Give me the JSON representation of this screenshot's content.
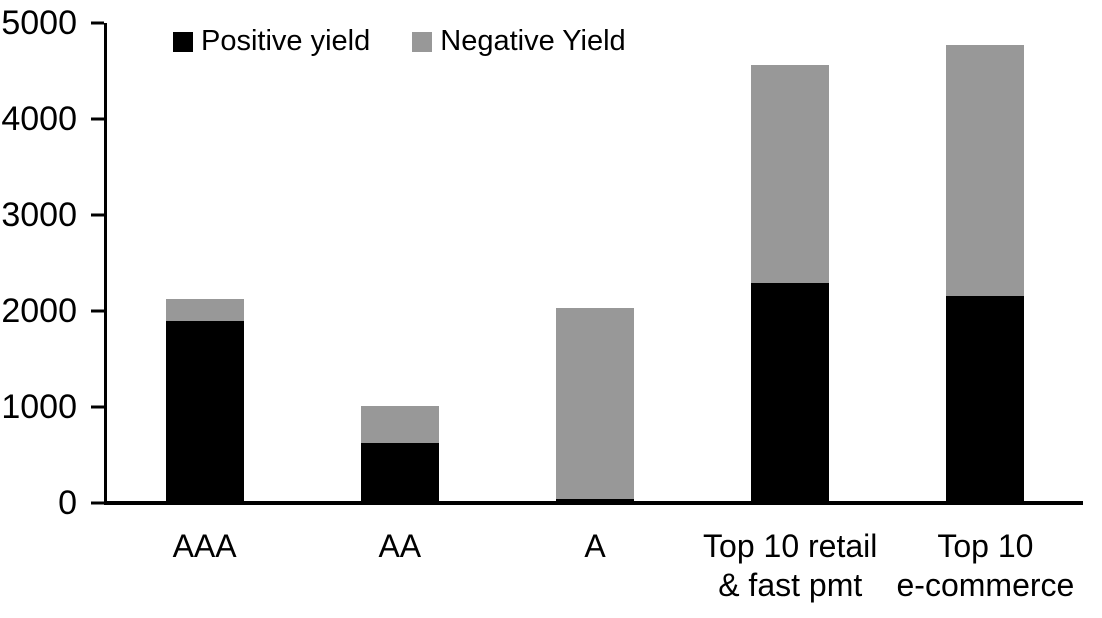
{
  "chart_data": {
    "type": "bar",
    "stacked": true,
    "title": "",
    "categories": [
      "AAA",
      "AA",
      "A",
      "Top 10 retail\n& fast pmt",
      "Top 10\ne-commerce"
    ],
    "series": [
      {
        "name": "Positive yield",
        "color": "#000000",
        "values": [
          1900,
          630,
          45,
          2290,
          2160
        ]
      },
      {
        "name": "Negative Yield",
        "color": "#989898",
        "values": [
          230,
          380,
          1985,
          2275,
          2610
        ]
      }
    ],
    "totals": [
      2130,
      1010,
      2030,
      4565,
      4770
    ],
    "xlabel": "",
    "ylabel": "",
    "ylim": [
      0,
      5000
    ],
    "yticks": [
      0,
      1000,
      2000,
      3000,
      4000,
      5000
    ],
    "grid": false,
    "legend_position": "top",
    "axis_color": "#000000",
    "background_color": "#ffffff"
  }
}
